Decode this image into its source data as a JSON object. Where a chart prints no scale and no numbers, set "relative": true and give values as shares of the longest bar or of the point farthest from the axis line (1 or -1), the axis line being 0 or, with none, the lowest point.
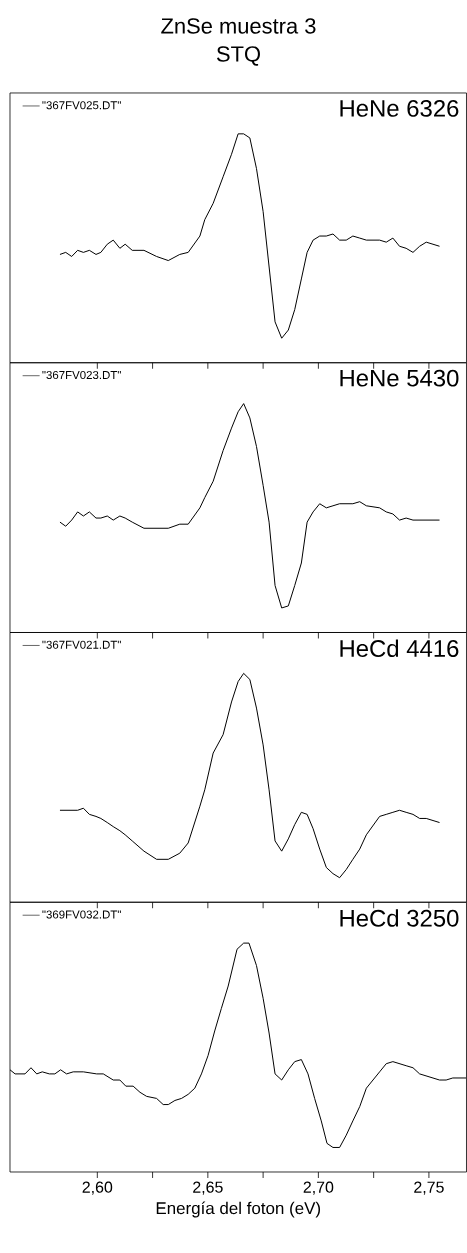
{
  "chart_data": [
    {
      "type": "line",
      "title": "ZnSe muestra 3",
      "subtitle": "STQ",
      "relative": true,
      "legend": "top left",
      "marker": "none",
      "line_style": "solid",
      "tick_labels": false,
      "annotations": [
        "HeNe 6326"
      ],
      "xlim": [
        2.5605,
        2.767
      ],
      "xticks": [
        2.6,
        2.65,
        2.7,
        2.75
      ],
      "series": [
        {
          "name": "\"367FV025.DT\"",
          "color": "#000000",
          "x": [
            2.5831,
            2.5857,
            2.5884,
            2.5911,
            2.5937,
            2.5964,
            2.5994,
            2.6016,
            2.6045,
            2.6072,
            2.6102,
            2.6126,
            2.6158,
            2.6211,
            2.6268,
            2.6321,
            2.6373,
            2.6411,
            2.6464,
            2.6486,
            2.6524,
            2.6569,
            2.6607,
            2.6637,
            2.6662,
            2.669,
            2.672,
            2.675,
            2.6777,
            2.6804,
            2.6834,
            2.6864,
            2.6893,
            2.6923,
            2.6949,
            2.6976,
            2.7006,
            2.7036,
            2.7066,
            2.7096,
            2.7126,
            2.7156,
            2.7187,
            2.7217,
            2.7277,
            2.7307,
            2.7337,
            2.7367,
            2.7397,
            2.7428,
            2.7458,
            2.7488,
            2.7518,
            2.7548
          ],
          "values": [
            0.41,
            0.42,
            0.4,
            0.43,
            0.42,
            0.43,
            0.41,
            0.42,
            0.46,
            0.48,
            0.44,
            0.46,
            0.43,
            0.43,
            0.4,
            0.38,
            0.41,
            0.42,
            0.5,
            0.58,
            0.66,
            0.79,
            0.9,
            1.0,
            1.0,
            0.98,
            0.83,
            0.62,
            0.35,
            0.08,
            0,
            0.04,
            0.14,
            0.29,
            0.42,
            0.48,
            0.5,
            0.5,
            0.51,
            0.48,
            0.48,
            0.5,
            0.49,
            0.48,
            0.48,
            0.47,
            0.49,
            0.45,
            0.44,
            0.42,
            0.45,
            0.47,
            0.46,
            0.45
          ]
        }
      ]
    },
    {
      "type": "line",
      "relative": true,
      "legend": "top left",
      "marker": "none",
      "line_style": "solid",
      "tick_labels": false,
      "annotations": [
        "HeNe 5430"
      ],
      "xlim": [
        2.5605,
        2.767
      ],
      "xticks": [
        2.6,
        2.65,
        2.7,
        2.75
      ],
      "series": [
        {
          "name": "\"367FV023.DT\"",
          "color": "#000000",
          "x": [
            2.5831,
            2.5857,
            2.5884,
            2.5911,
            2.5937,
            2.5964,
            2.5994,
            2.6016,
            2.6045,
            2.6072,
            2.6102,
            2.6126,
            2.6158,
            2.6211,
            2.6268,
            2.6321,
            2.6373,
            2.6411,
            2.6464,
            2.6486,
            2.6524,
            2.6569,
            2.6607,
            2.6637,
            2.6662,
            2.669,
            2.672,
            2.675,
            2.6777,
            2.6804,
            2.6834,
            2.6864,
            2.6893,
            2.6923,
            2.6949,
            2.6976,
            2.7006,
            2.7036,
            2.7066,
            2.7096,
            2.7126,
            2.7156,
            2.7187,
            2.7217,
            2.7277,
            2.7307,
            2.7337,
            2.7367,
            2.7397,
            2.7428,
            2.7458,
            2.7488,
            2.7518,
            2.7548
          ],
          "values": [
            0.42,
            0.4,
            0.43,
            0.47,
            0.45,
            0.47,
            0.44,
            0.44,
            0.45,
            0.43,
            0.45,
            0.44,
            0.42,
            0.39,
            0.39,
            0.39,
            0.41,
            0.41,
            0.49,
            0.54,
            0.62,
            0.77,
            0.88,
            0.96,
            1.0,
            0.93,
            0.79,
            0.6,
            0.42,
            0.11,
            0,
            0.01,
            0.11,
            0.22,
            0.42,
            0.47,
            0.51,
            0.49,
            0.5,
            0.51,
            0.51,
            0.51,
            0.52,
            0.5,
            0.49,
            0.47,
            0.46,
            0.43,
            0.44,
            0.43,
            0.43,
            0.43,
            0.43,
            0.43
          ]
        }
      ]
    },
    {
      "type": "line",
      "relative": true,
      "legend": "top left",
      "marker": "none",
      "line_style": "solid",
      "tick_labels": false,
      "annotations": [
        "HeCd 4416"
      ],
      "xlim": [
        2.5605,
        2.767
      ],
      "xticks": [
        2.6,
        2.65,
        2.7,
        2.75
      ],
      "series": [
        {
          "name": "\"367FV021.DT\"",
          "color": "#000000",
          "x": [
            2.5831,
            2.5857,
            2.5884,
            2.5911,
            2.5937,
            2.5964,
            2.5994,
            2.6016,
            2.6045,
            2.6072,
            2.6102,
            2.6126,
            2.6158,
            2.6211,
            2.6268,
            2.6321,
            2.6373,
            2.6411,
            2.6464,
            2.6486,
            2.6524,
            2.6569,
            2.6607,
            2.6637,
            2.6662,
            2.669,
            2.672,
            2.675,
            2.6777,
            2.6804,
            2.6834,
            2.6864,
            2.6893,
            2.6923,
            2.6949,
            2.6976,
            2.7006,
            2.7036,
            2.7066,
            2.7096,
            2.7126,
            2.7156,
            2.7187,
            2.7217,
            2.7277,
            2.7307,
            2.7337,
            2.7367,
            2.7397,
            2.7428,
            2.7458,
            2.7488,
            2.7518,
            2.7548
          ],
          "values": [
            0.33,
            0.33,
            0.33,
            0.33,
            0.34,
            0.31,
            0.3,
            0.29,
            0.27,
            0.25,
            0.23,
            0.21,
            0.18,
            0.13,
            0.09,
            0.09,
            0.12,
            0.17,
            0.35,
            0.43,
            0.61,
            0.7,
            0.86,
            0.96,
            1.0,
            0.97,
            0.83,
            0.65,
            0.43,
            0.18,
            0.13,
            0.19,
            0.26,
            0.32,
            0.31,
            0.24,
            0.14,
            0.05,
            0.02,
            0,
            0.04,
            0.09,
            0.14,
            0.21,
            0.3,
            0.31,
            0.32,
            0.33,
            0.32,
            0.31,
            0.29,
            0.29,
            0.28,
            0.27
          ]
        }
      ]
    },
    {
      "type": "line",
      "relative": true,
      "legend": "top left",
      "marker": "none",
      "line_style": "solid",
      "tick_labels": "x",
      "annotations": [
        "HeCd 3250"
      ],
      "xlabel": "Energía del foton (eV)",
      "xlim": [
        2.5605,
        2.767
      ],
      "xticks": [
        {
          "value": 2.6,
          "label": "2,60"
        },
        {
          "value": 2.65,
          "label": "2,65"
        },
        {
          "value": 2.7,
          "label": "2,70"
        },
        {
          "value": 2.75,
          "label": "2,75"
        }
      ],
      "series": [
        {
          "name": "\"369FV032.DT\"",
          "color": "#000000",
          "x": [
            2.5605,
            2.5628,
            2.5673,
            2.57,
            2.5726,
            2.5751,
            2.5783,
            2.5808,
            2.5834,
            2.5861,
            2.5891,
            2.5937,
            2.5997,
            2.6027,
            2.6072,
            2.6102,
            2.6129,
            2.6162,
            2.6193,
            2.6223,
            2.6268,
            2.6298,
            2.6321,
            2.6351,
            2.6381,
            2.6411,
            2.6441,
            2.6471,
            2.6501,
            2.6531,
            2.6561,
            2.6592,
            2.6632,
            2.6662,
            2.6686,
            2.672,
            2.675,
            2.6777,
            2.6804,
            2.6834,
            2.6864,
            2.6893,
            2.6923,
            2.6953,
            2.6983,
            2.7013,
            2.7039,
            2.7066,
            2.7096,
            2.7126,
            2.7156,
            2.7187,
            2.7217,
            2.7247,
            2.7277,
            2.7307,
            2.7337,
            2.7367,
            2.7397,
            2.7428,
            2.7458,
            2.7488,
            2.7518,
            2.7548,
            2.7578,
            2.7608,
            2.7638,
            2.7668
          ],
          "values": [
            0.38,
            0.36,
            0.36,
            0.39,
            0.36,
            0.37,
            0.36,
            0.36,
            0.38,
            0.36,
            0.37,
            0.37,
            0.36,
            0.36,
            0.33,
            0.33,
            0.3,
            0.3,
            0.27,
            0.25,
            0.24,
            0.21,
            0.21,
            0.23,
            0.24,
            0.26,
            0.29,
            0.36,
            0.45,
            0.57,
            0.68,
            0.79,
            0.97,
            1.0,
            1.0,
            0.89,
            0.73,
            0.56,
            0.36,
            0.33,
            0.38,
            0.42,
            0.43,
            0.36,
            0.24,
            0.13,
            0.02,
            0,
            0,
            0.06,
            0.13,
            0.2,
            0.29,
            0.33,
            0.37,
            0.41,
            0.42,
            0.41,
            0.4,
            0.39,
            0.36,
            0.35,
            0.34,
            0.33,
            0.33,
            0.34,
            0.34,
            0.34
          ]
        }
      ]
    }
  ]
}
